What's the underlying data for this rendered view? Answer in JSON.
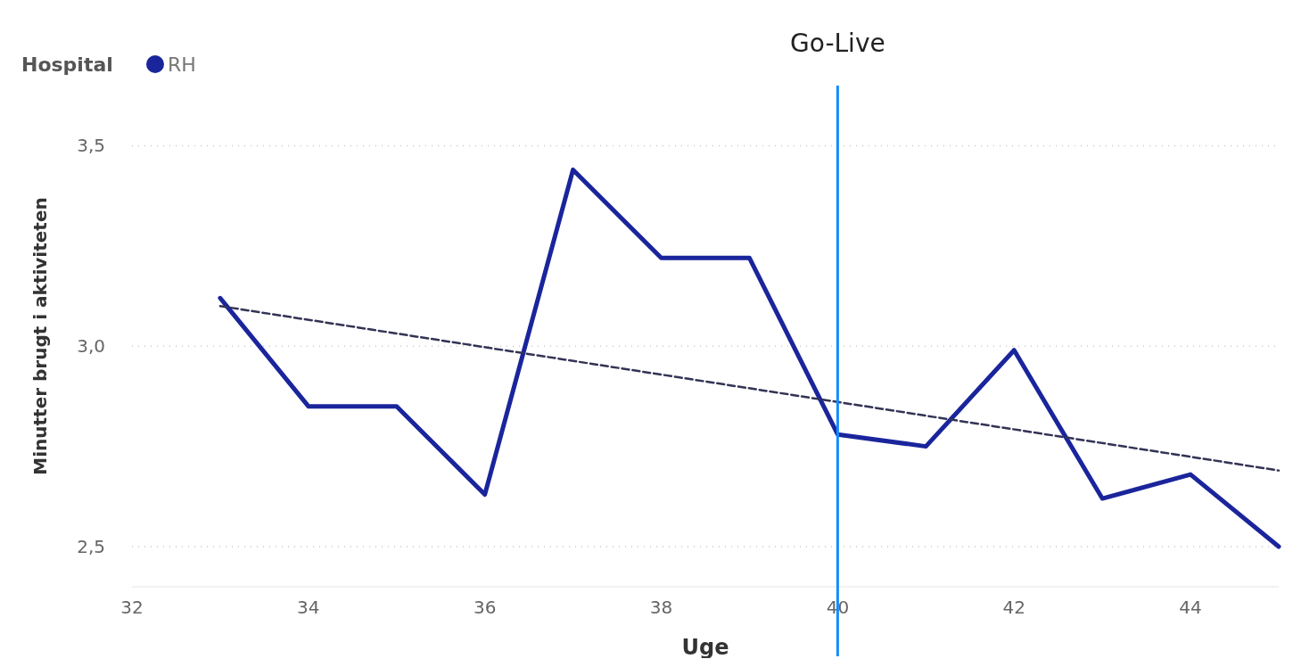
{
  "chart_data": {
    "type": "line",
    "xlabel": "Uge",
    "ylabel": "Minutter brugt i aktiviteten",
    "legend_title": "Hospital",
    "legend": "top left",
    "grid": "y",
    "xlim": [
      32,
      45
    ],
    "xticks": [
      32,
      34,
      36,
      38,
      40,
      42,
      44
    ],
    "ylim": [
      2.4,
      3.65
    ],
    "yticks": [
      {
        "value": 2.5,
        "label": "2,5"
      },
      {
        "value": 3.0,
        "label": "3,0"
      },
      {
        "value": 3.5,
        "label": "3,5"
      }
    ],
    "x": [
      33,
      34,
      35,
      36,
      37,
      38,
      39,
      40,
      41,
      42,
      43,
      44,
      45
    ],
    "series": [
      {
        "name": "RH",
        "color": "#1a259c",
        "values": [
          3.12,
          2.85,
          2.85,
          2.63,
          3.44,
          3.22,
          3.22,
          2.78,
          2.75,
          2.99,
          2.62,
          2.68,
          2.5
        ]
      },
      {
        "type": "line",
        "color": "#333355",
        "line_style": "dashed",
        "x": [
          33,
          45
        ],
        "values": [
          3.1,
          2.69
        ]
      }
    ],
    "ref_lines": [
      {
        "axis": "x",
        "value": 40,
        "label": "Go-Live",
        "color": "#118dff"
      }
    ]
  }
}
